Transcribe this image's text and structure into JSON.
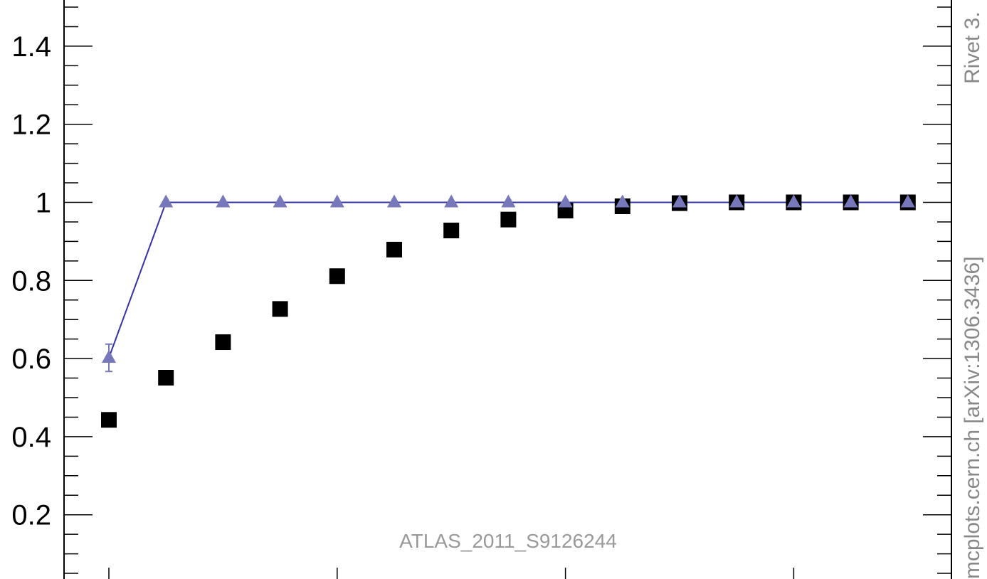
{
  "chart_data": {
    "type": "scatter",
    "title": "",
    "xlabel": "",
    "ylabel": "",
    "ylim": [
      0.0,
      1.55
    ],
    "y_ticks": [
      0.2,
      0.4,
      0.6,
      0.8,
      1.0,
      1.2,
      1.4
    ],
    "y_tick_labels": [
      "0.2",
      "0.4",
      "0.6",
      "0.8",
      "1",
      "1.2",
      "1.4"
    ],
    "y_minor_step": 0.05,
    "x": [
      1,
      2,
      3,
      4,
      5,
      6,
      7,
      8,
      9,
      10,
      11,
      12,
      13,
      14,
      15
    ],
    "x_ticks": [
      1,
      5,
      9,
      13
    ],
    "grid": false,
    "series": [
      {
        "role": "data",
        "marker": "square",
        "color": "#000000",
        "values": [
          0.443,
          0.551,
          0.642,
          0.727,
          0.811,
          0.879,
          0.928,
          0.956,
          0.979,
          0.99,
          0.998,
          1.0,
          1.0,
          1.0,
          1.0
        ]
      },
      {
        "role": "mc",
        "marker": "triangle",
        "color": "#7777bb",
        "line_color": "#3333aa",
        "values": [
          0.602,
          1.0,
          1.0,
          1.0,
          1.0,
          1.0,
          1.0,
          1.0,
          1.0,
          1.0,
          1.0,
          1.0,
          1.0,
          1.0,
          1.0
        ],
        "errors": [
          0.035,
          0,
          0,
          0,
          0,
          0,
          0,
          0,
          0,
          0,
          0,
          0,
          0,
          0,
          0
        ]
      }
    ],
    "annotations": {
      "analysis": "ATLAS_2011_S9126244",
      "side_top": "Rivet 3.",
      "side_bottom": "mcplots.cern.ch [arXiv:1306.3436]"
    }
  }
}
